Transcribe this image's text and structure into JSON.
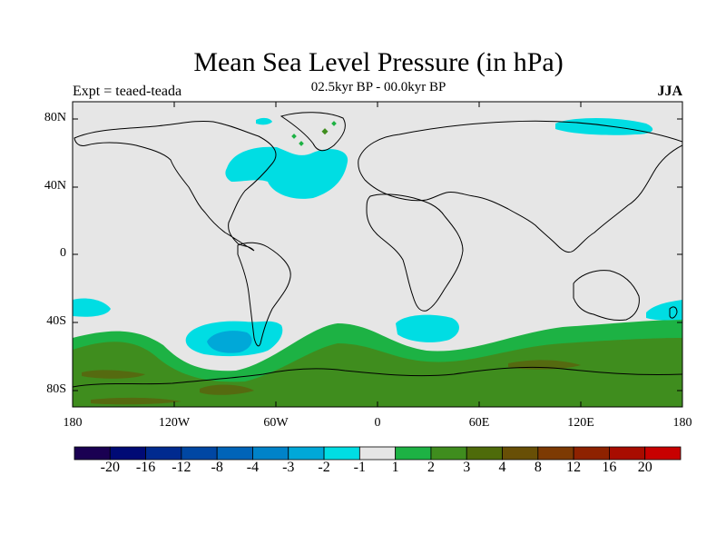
{
  "title": "Mean Sea Level Pressure (in hPa)",
  "expt_label": "Expt = teaed-teada",
  "period_label": "02.5kyr BP - 00.0kyr BP",
  "season_label": "JJA",
  "lat_ticks": [
    "80N",
    "40N",
    "0",
    "40S",
    "80S"
  ],
  "lon_ticks": [
    "180",
    "120W",
    "60W",
    "0",
    "60E",
    "120E",
    "180"
  ],
  "colorbar": {
    "colors": [
      "#1a0052",
      "#000a75",
      "#002a8f",
      "#0047a3",
      "#0064b8",
      "#0083c9",
      "#00a8d8",
      "#00dde3",
      "#e6e6e6",
      "#1db244",
      "#3f8d1e",
      "#4e6b0a",
      "#684f06",
      "#7d3a03",
      "#8e2200",
      "#a80c00",
      "#c80000"
    ],
    "labels": [
      "-20",
      "-16",
      "-12",
      "-8",
      "-4",
      "-3",
      "-2",
      "-1",
      "1",
      "2",
      "3",
      "4",
      "8",
      "12",
      "16",
      "20"
    ]
  },
  "colors": {
    "background": "#e6e6e6",
    "neg1": "#00dde3",
    "neg2": "#00a8d8",
    "pos1": "#1db244",
    "pos2": "#3f8d1e",
    "pos4": "#684f06"
  }
}
